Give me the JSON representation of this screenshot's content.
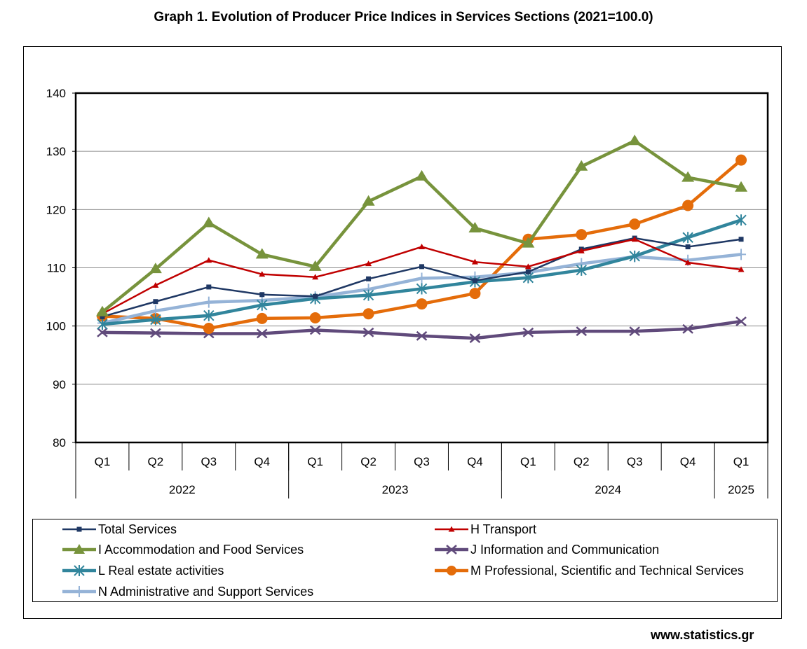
{
  "title": "Graph 1. Evolution of Producer Price Indices in Services Sections (2021=100.0)",
  "footer": "www.statistics.gr",
  "chart_data": {
    "type": "line",
    "title": "Graph 1. Evolution of Producer Price Indices in Services Sections (2021=100.0)",
    "xlabel": "",
    "ylabel": "",
    "ylim": [
      80,
      140
    ],
    "yticks": [
      80,
      90,
      100,
      110,
      120,
      130,
      140
    ],
    "grid": true,
    "legend_position": "bottom",
    "categories": [
      "Q1",
      "Q2",
      "Q3",
      "Q4",
      "Q1",
      "Q2",
      "Q3",
      "Q4",
      "Q1",
      "Q2",
      "Q3",
      "Q4",
      "Q1"
    ],
    "year_groups": [
      {
        "label": "2022",
        "count": 4
      },
      {
        "label": "2023",
        "count": 4
      },
      {
        "label": "2024",
        "count": 4
      },
      {
        "label": "2025",
        "count": 1
      }
    ],
    "series": [
      {
        "name": "Total Services",
        "color": "#1F3864",
        "marker": "square",
        "values": [
          101.6,
          104.2,
          106.7,
          105.4,
          105.1,
          108.1,
          110.2,
          107.8,
          109.3,
          113.2,
          115.1,
          113.6,
          114.9
        ]
      },
      {
        "name": "H Transport",
        "color": "#C00000",
        "marker": "triangle",
        "values": [
          102.1,
          107.0,
          111.3,
          108.9,
          108.4,
          110.7,
          113.6,
          111.0,
          110.2,
          112.9,
          114.9,
          110.9,
          109.7
        ]
      },
      {
        "name": "I Accommodation and Food Services",
        "color": "#77933C",
        "marker": "triangle-big",
        "values": [
          102.4,
          109.8,
          117.7,
          112.3,
          110.2,
          121.4,
          125.7,
          116.8,
          114.2,
          127.4,
          131.8,
          125.5,
          123.8
        ]
      },
      {
        "name": "J Information and Communication",
        "color": "#604A7B",
        "marker": "x",
        "values": [
          98.9,
          98.8,
          98.7,
          98.7,
          99.3,
          98.9,
          98.3,
          97.9,
          98.9,
          99.1,
          99.1,
          99.5,
          100.8
        ]
      },
      {
        "name": "L Real estate activities",
        "color": "#31859C",
        "marker": "star",
        "values": [
          100.3,
          101.1,
          101.8,
          103.6,
          104.7,
          105.3,
          106.4,
          107.6,
          108.3,
          109.6,
          112.0,
          115.2,
          118.2
        ]
      },
      {
        "name": "M Professional, Scientific and Technical Services",
        "color": "#E46C0A",
        "marker": "circle",
        "values": [
          101.7,
          101.3,
          99.6,
          101.3,
          101.4,
          102.1,
          103.8,
          105.6,
          114.9,
          115.7,
          117.5,
          120.7,
          128.5
        ]
      },
      {
        "name": "N Administrative and Support Services",
        "color": "#95B3D7",
        "marker": "plus",
        "values": [
          100.5,
          102.6,
          104.1,
          104.4,
          105.0,
          106.3,
          108.2,
          108.4,
          109.2,
          110.7,
          111.9,
          111.3,
          112.3
        ]
      }
    ]
  }
}
